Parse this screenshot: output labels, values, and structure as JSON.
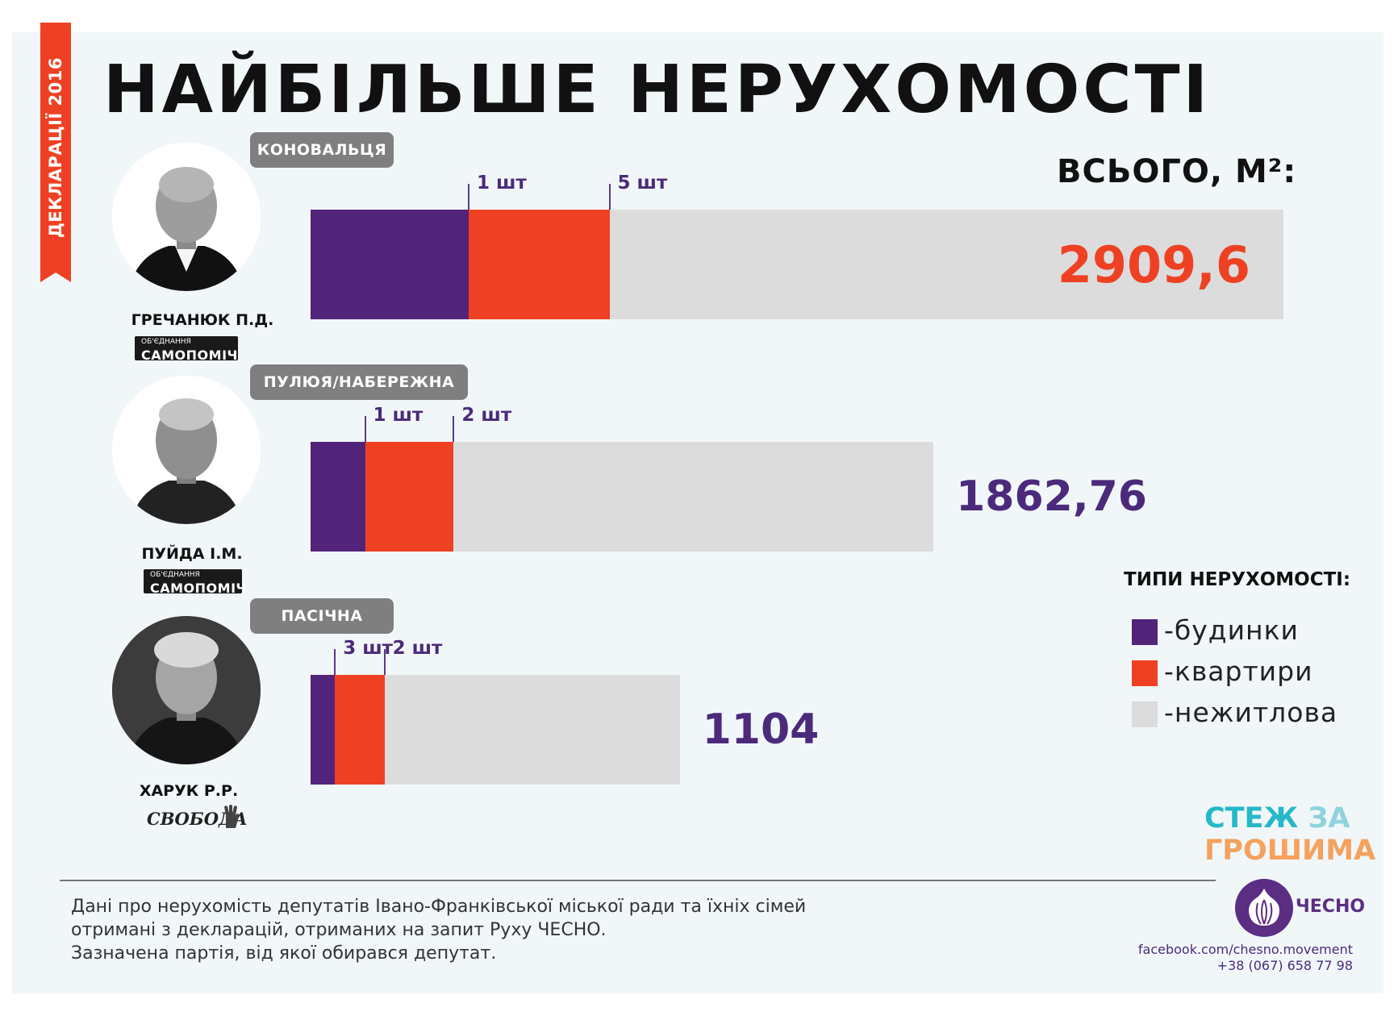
{
  "side_label": "ДЕКЛАРАЦІЇ 2016",
  "title": "НАЙБІЛЬШЕ НЕРУХОМОСТІ",
  "total_header": "ВСЬОГО, М²:",
  "colors": {
    "houses": "#522479",
    "apartments": "#ee4123",
    "nonresidential": "#dcdcdc",
    "accent_red": "#ee4123",
    "accent_purple": "#4b2a7b"
  },
  "chart_data": {
    "type": "bar",
    "orientation": "horizontal",
    "stacked": true,
    "unit": "м²",
    "categories": [
      "ГРЕЧАНЮК П.Д.",
      "ПУЙДА І.М.",
      "ХАРУК Р.Р."
    ],
    "series": [
      {
        "name": "будинки",
        "values": [
          473,
          163,
          73
        ]
      },
      {
        "name": "квартири",
        "values": [
          421,
          265,
          148
        ]
      },
      {
        "name": "нежитлова",
        "values": [
          2015.6,
          1434.76,
          883
        ]
      }
    ],
    "totals": [
      "2909,6",
      "1862,76",
      "1104"
    ],
    "total_values": [
      2909.6,
      1862.76,
      1104
    ],
    "annotations": [
      {
        "person": 0,
        "labels": [
          "1 шт",
          "5 шт"
        ]
      },
      {
        "person": 1,
        "labels": [
          "1 шт",
          "2 шт"
        ]
      },
      {
        "person": 2,
        "labels": [
          "3 шт",
          "2 шт"
        ]
      }
    ],
    "legend_title": "ТИПИ НЕРУХОМОСТІ:",
    "legend": [
      "-будинки",
      "-квартири",
      "-нежитлова"
    ],
    "legend_position": "right",
    "grid": false
  },
  "persons": [
    {
      "name": "ГРЕЧАНЮК П.Д.",
      "district": "КОНОВАЛЬЦЯ",
      "party_small": "ОБ'ЄДНАННЯ",
      "party": "САМОПОМІЧ"
    },
    {
      "name": "ПУЙДА І.М.",
      "district": "ПУЛЮЯ/НАБЕРЕЖНА",
      "party_small": "ОБ'ЄДНАННЯ",
      "party": "САМОПОМІЧ"
    },
    {
      "name": "ХАРУК Р.Р.",
      "district": "ПАСІЧНА",
      "party_small": "",
      "party": "СВОБОДА"
    }
  ],
  "footnote": [
    "Дані про нерухомість депутатів Івано-Франківської міської ради та їхніх сімей",
    "отримані з декларацій, отриманих на запит Руху ЧЕСНО.",
    "Зазначена партія, від якої обирався депутат."
  ],
  "brand": {
    "stezh_1": "СТЕЖ",
    "stezh_2": "ЗА",
    "stezh_3": "ГРОШИМА",
    "chesno": "ЧЕСНО"
  },
  "contact": {
    "facebook": "facebook.com/chesno.movement",
    "phone": "+38 (067) 658 77 98"
  }
}
